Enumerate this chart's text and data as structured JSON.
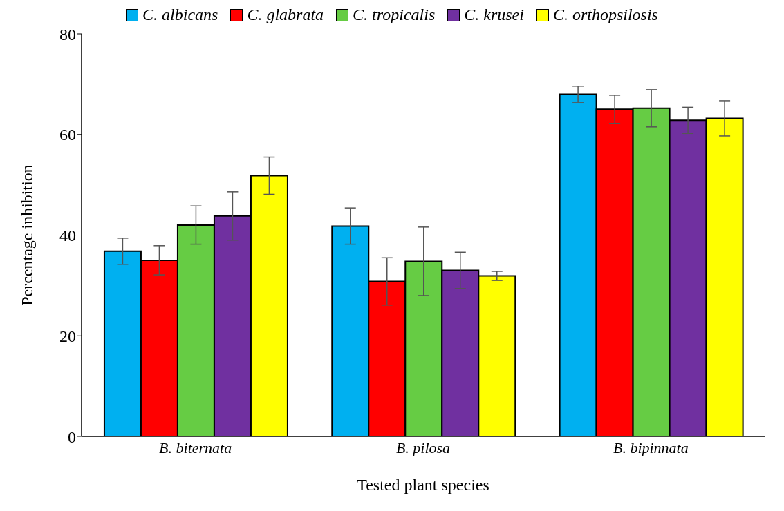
{
  "chart_data": {
    "type": "bar",
    "xlabel": "Tested plant species",
    "ylabel": "Percentage  inhibition",
    "categories": [
      "B. biternata",
      "B. pilosa",
      "B. bipinnata"
    ],
    "series": [
      {
        "name": "C. albicans",
        "color": "#00b0f0",
        "values": [
          36.8,
          41.8,
          68
        ],
        "errors": [
          2.6,
          3.6,
          1.6
        ]
      },
      {
        "name": "C. glabrata",
        "color": "#ff0000",
        "values": [
          35,
          30.8,
          65
        ],
        "errors": [
          2.9,
          4.7,
          2.8
        ]
      },
      {
        "name": "C. tropicalis",
        "color": "#66cc44",
        "values": [
          42,
          34.8,
          65.2
        ],
        "errors": [
          3.8,
          6.8,
          3.7
        ]
      },
      {
        "name": "C. krusei",
        "color": "#7030a0",
        "values": [
          43.8,
          33,
          62.8
        ],
        "errors": [
          4.8,
          3.6,
          2.6
        ]
      },
      {
        "name": "C. orthopsilosis",
        "color": "#ffff00",
        "values": [
          51.8,
          31.9,
          63.2
        ],
        "errors": [
          3.7,
          0.9,
          3.5
        ]
      }
    ],
    "ylim": [
      0,
      80
    ],
    "yticks": [
      0,
      20,
      40,
      60,
      80
    ],
    "grid": false,
    "legend": "top"
  }
}
